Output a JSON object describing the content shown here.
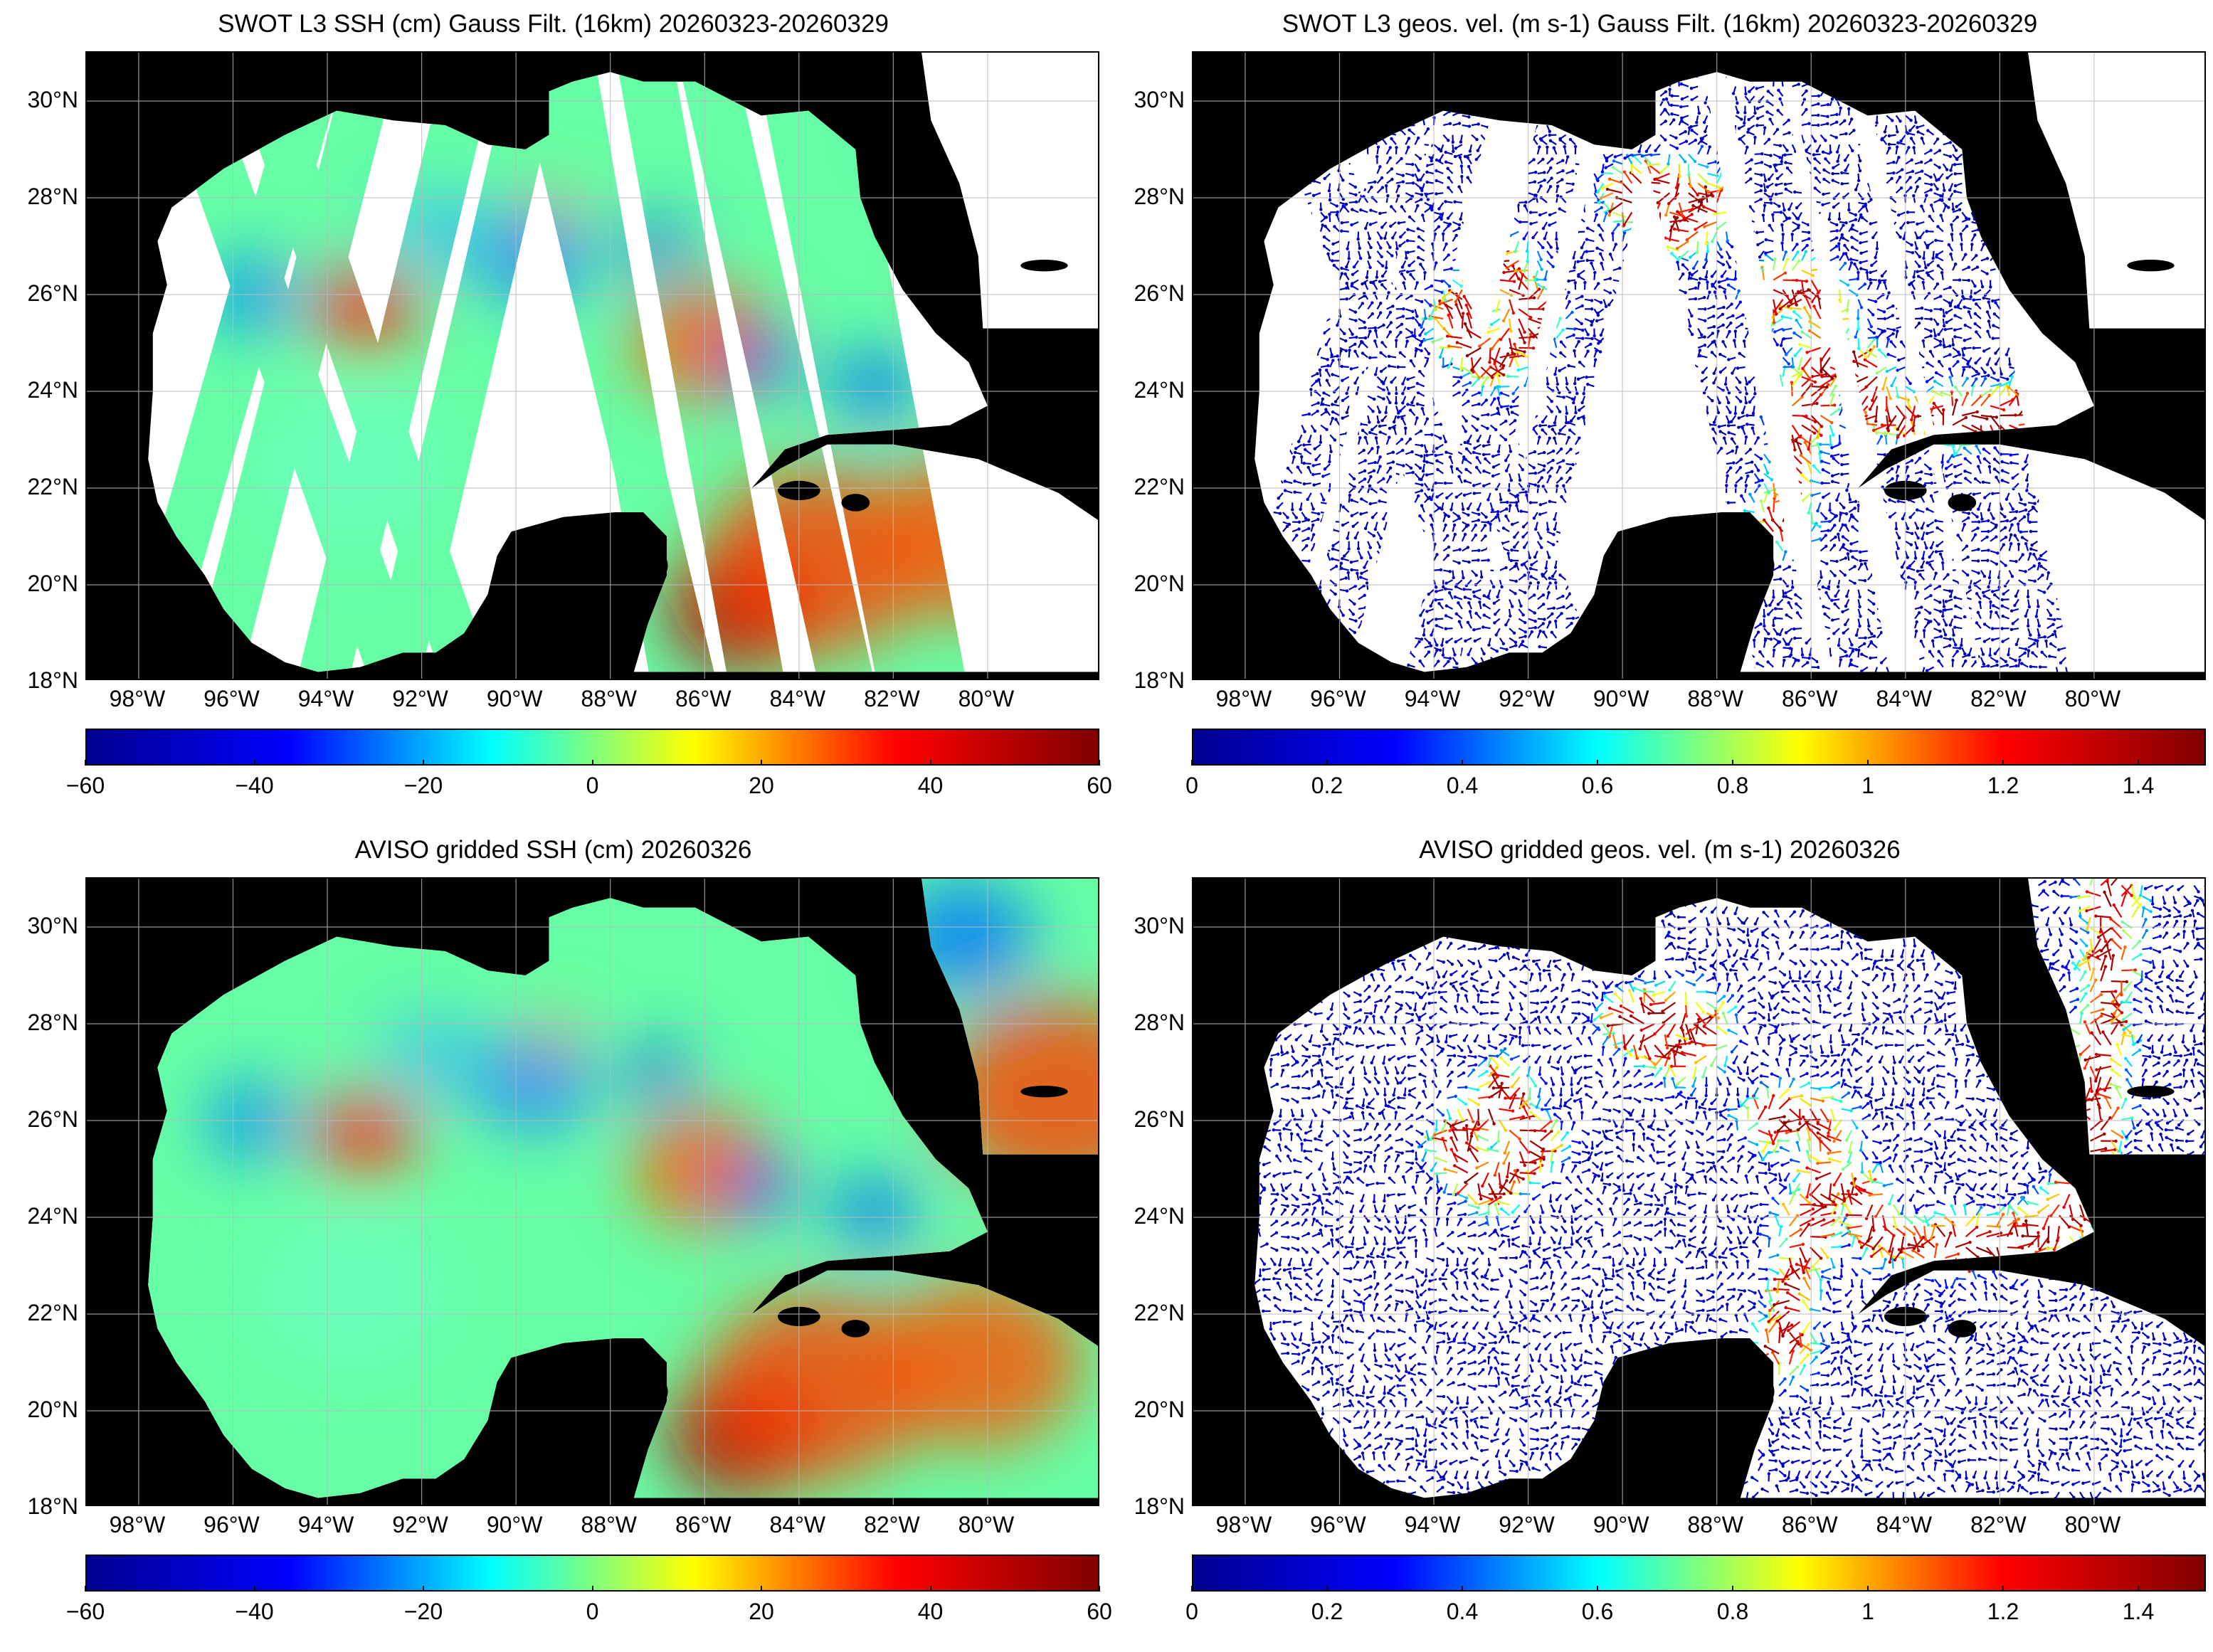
{
  "colors": {
    "ocean_no_data": "#ffffff",
    "land": "#000000",
    "grid": "#bbbbbb",
    "jet": [
      "#00008f",
      "#0000ff",
      "#00ffff",
      "#ffff00",
      "#ff0000",
      "#800000"
    ]
  },
  "lat_labels": [
    "30°N",
    "28°N",
    "26°N",
    "24°N",
    "22°N",
    "20°N",
    "18°N"
  ],
  "lon_labels": [
    "98°W",
    "96°W",
    "94°W",
    "92°W",
    "90°W",
    "88°W",
    "86°W",
    "84°W",
    "82°W",
    "80°W"
  ],
  "panels": [
    {
      "title": "SWOT L3 SSH (cm) Gauss Filt. (16km) 20260323-20260329",
      "variable": "ssh",
      "coverage": "swaths",
      "colorbar": {
        "ticks": [
          "−60",
          "−40",
          "−20",
          "0",
          "20",
          "40",
          "60"
        ],
        "min": -60,
        "max": 60
      }
    },
    {
      "title": "SWOT L3 geos. vel. (m s-1) Gauss Filt. (16km) 20260323-20260329",
      "variable": "velocity",
      "coverage": "swaths",
      "colorbar": {
        "ticks": [
          "0",
          "0.2",
          "0.4",
          "0.6",
          "0.8",
          "1",
          "1.2",
          "1.4"
        ],
        "min": 0,
        "max": 1.5
      }
    },
    {
      "title": "AVISO gridded SSH (cm) 20260326",
      "variable": "ssh",
      "coverage": "full",
      "colorbar": {
        "ticks": [
          "−60",
          "−40",
          "−20",
          "0",
          "20",
          "40",
          "60"
        ],
        "min": -60,
        "max": 60
      }
    },
    {
      "title": "AVISO gridded geos. vel. (m s-1)  20260326",
      "variable": "velocity",
      "coverage": "full",
      "colorbar": {
        "ticks": [
          "0",
          "0.2",
          "0.4",
          "0.6",
          "0.8",
          "1",
          "1.2",
          "1.4"
        ],
        "min": 0,
        "max": 1.5
      }
    }
  ]
}
